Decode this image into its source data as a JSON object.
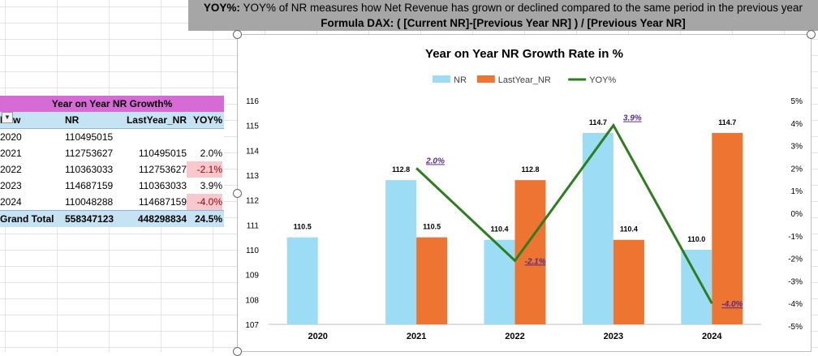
{
  "banner": {
    "line1_bold": "YOY%:",
    "line1": " YOY% of NR measures how Net Revenue has grown or declined compared to the same period in the previous year",
    "line2": "Formula DAX: ( [Current NR]-[Previous Year NR] ) / [Previous Year NR]"
  },
  "pivot": {
    "title": "Year on Year NR Growth%",
    "headers": {
      "row_label": "Row Labe",
      "nr": "NR",
      "last_year": "LastYear_NR",
      "yoy": "YOY%"
    },
    "rows": [
      {
        "year": "2020",
        "nr": "110495015",
        "last": "",
        "yoy": ""
      },
      {
        "year": "2021",
        "nr": "112753627",
        "last": "110495015",
        "yoy": "2.0%"
      },
      {
        "year": "2022",
        "nr": "110363033",
        "last": "112753627",
        "yoy": "-2.1%"
      },
      {
        "year": "2023",
        "nr": "114687159",
        "last": "110363033",
        "yoy": "3.9%"
      },
      {
        "year": "2024",
        "nr": "110048288",
        "last": "114687159",
        "yoy": "-4.0%"
      }
    ],
    "grand": {
      "label": "Grand Total",
      "nr": "558347123",
      "last": "448298834",
      "yoy": "24.5%"
    }
  },
  "chart_data": {
    "type": "bar",
    "title": "Year on Year NR Growth Rate in %",
    "categories": [
      "2020",
      "2021",
      "2022",
      "2023",
      "2024"
    ],
    "series": [
      {
        "name": "NR",
        "kind": "bar",
        "color": "#9ddcf5",
        "values": [
          110.5,
          112.8,
          110.4,
          114.7,
          110.0
        ],
        "labels": [
          "110.5",
          "112.8",
          "110.4",
          "114.7",
          "110.0"
        ]
      },
      {
        "name": "LastYear_NR",
        "kind": "bar",
        "color": "#ed7431",
        "values": [
          null,
          110.5,
          112.8,
          110.4,
          114.7
        ],
        "labels": [
          "",
          "110.5",
          "112.8",
          "110.4",
          "114.7"
        ]
      },
      {
        "name": "YOY%",
        "kind": "line",
        "axis": "secondary",
        "color": "#2e7d1e",
        "values": [
          null,
          2.0,
          -2.1,
          3.9,
          -4.0
        ],
        "labels": [
          "",
          "2.0%",
          "-2.1%",
          "3.9%",
          "-4.0%"
        ]
      }
    ],
    "y_axis": {
      "min": 107,
      "max": 116,
      "ticks": [
        "107",
        "108",
        "109",
        "110",
        "111",
        "112",
        "113",
        "114",
        "115",
        "116"
      ]
    },
    "y2_axis": {
      "min": -5,
      "max": 5,
      "ticks": [
        "5%",
        "4%",
        "3%",
        "2%",
        "1%",
        "0%",
        "-1%",
        "-2%",
        "-3%",
        "-4%",
        "-5%"
      ]
    },
    "legend_position": "top",
    "grid": false
  }
}
